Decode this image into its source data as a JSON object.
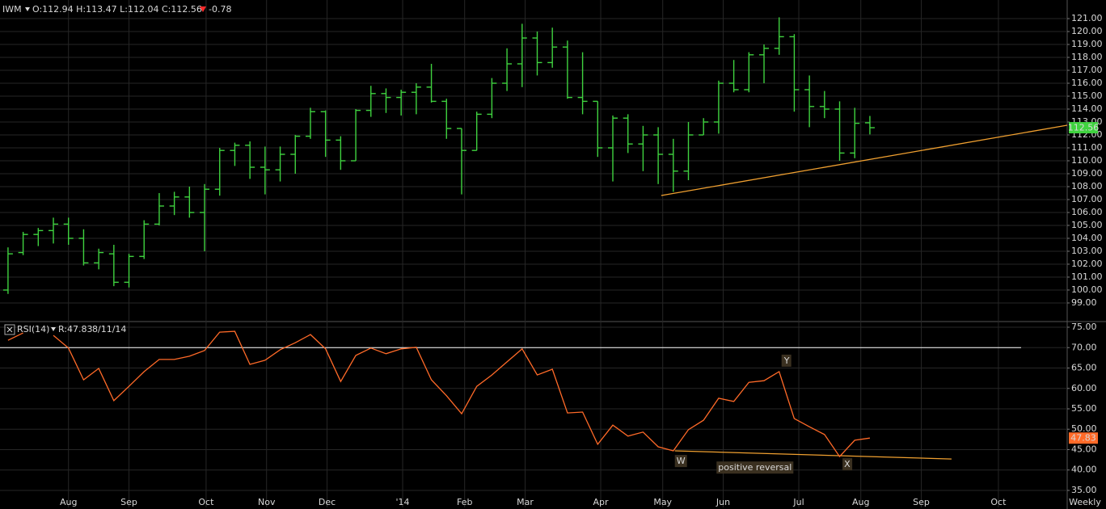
{
  "chart_data": [
    {
      "type": "ohlc",
      "title": "IWM",
      "header": "O:112.94 H:113.47 L:112.04 C:112.56",
      "change": "-0.78",
      "color": "#3fd23f",
      "header_color": "#3fd23f",
      "change_color": "#ff2a2a",
      "open": [
        100.0,
        102.9,
        104.3,
        104.6,
        105.1,
        104.0,
        102.1,
        102.8,
        100.6,
        102.6,
        105.1,
        106.5,
        107.2,
        106.0,
        107.8,
        110.8,
        111.2,
        109.5,
        109.3,
        110.5,
        111.9,
        113.8,
        111.6,
        110.0,
        113.9,
        115.2,
        114.9,
        115.3,
        115.7,
        114.6,
        112.5,
        110.8,
        113.6,
        116.0,
        117.5,
        119.5,
        117.6,
        118.8,
        114.9,
        114.6,
        111.0,
        113.3,
        111.3,
        112.0,
        110.5,
        109.2,
        112.0,
        113.0,
        116.0,
        115.5,
        118.2,
        118.7,
        119.6,
        115.5,
        114.2,
        114.0,
        110.6,
        112.94
      ],
      "high": [
        103.3,
        104.5,
        104.8,
        105.6,
        105.6,
        104.7,
        103.2,
        103.5,
        102.8,
        105.4,
        107.5,
        107.6,
        108.0,
        108.2,
        111.0,
        111.4,
        111.5,
        111.1,
        111.1,
        112.0,
        114.1,
        113.9,
        111.9,
        114.0,
        115.8,
        115.6,
        115.5,
        116.0,
        117.5,
        114.8,
        112.5,
        113.8,
        116.4,
        118.7,
        120.6,
        120.0,
        120.3,
        119.3,
        118.4,
        114.6,
        113.5,
        113.6,
        112.7,
        112.6,
        111.7,
        113.0,
        113.3,
        116.2,
        117.8,
        118.4,
        119.0,
        121.1,
        119.8,
        116.6,
        115.4,
        114.6,
        114.1,
        113.47
      ],
      "low": [
        99.7,
        102.7,
        103.4,
        103.6,
        103.5,
        101.9,
        101.6,
        100.3,
        100.2,
        102.4,
        105.0,
        105.8,
        105.6,
        103.0,
        107.3,
        109.6,
        108.6,
        107.4,
        108.4,
        109.0,
        111.7,
        110.3,
        109.3,
        110.0,
        113.4,
        113.7,
        113.5,
        113.6,
        114.5,
        111.7,
        107.4,
        110.8,
        113.3,
        115.4,
        115.7,
        116.6,
        117.2,
        114.8,
        113.6,
        110.3,
        108.4,
        110.6,
        109.2,
        108.2,
        107.6,
        108.5,
        112.0,
        112.1,
        115.3,
        115.3,
        116.0,
        118.2,
        113.8,
        112.6,
        113.3,
        110.0,
        110.2,
        112.04
      ],
      "close": [
        102.8,
        104.3,
        104.6,
        105.1,
        104.0,
        102.1,
        102.9,
        100.6,
        102.6,
        105.1,
        106.5,
        107.2,
        106.0,
        107.8,
        110.8,
        111.2,
        109.5,
        109.3,
        110.5,
        111.9,
        113.8,
        111.6,
        110.0,
        113.9,
        115.2,
        114.9,
        115.3,
        115.7,
        114.6,
        112.5,
        110.8,
        113.6,
        116.0,
        117.5,
        119.5,
        117.6,
        118.8,
        114.9,
        114.6,
        111.0,
        113.3,
        111.3,
        112.0,
        110.5,
        109.2,
        112.0,
        113.0,
        116.0,
        115.5,
        118.2,
        118.7,
        119.6,
        115.5,
        114.2,
        114.0,
        110.6,
        112.9,
        112.56
      ],
      "last_value_label": "112.56",
      "trendlines": [
        {
          "x": [
            43.2,
            70.05
          ],
          "y": [
            107.31,
            112.75
          ],
          "color": "#f0a030"
        }
      ],
      "xlim": [
        -0.53,
        70.05
      ],
      "ylim": [
        97.56,
        122.44
      ],
      "yticks": [
        {
          "value": 99,
          "label": "99.00"
        },
        {
          "value": 100,
          "label": "100.00"
        },
        {
          "value": 101,
          "label": "101.00"
        },
        {
          "value": 102,
          "label": "102.00"
        },
        {
          "value": 103,
          "label": "103.00"
        },
        {
          "value": 104,
          "label": "104.00"
        },
        {
          "value": 105,
          "label": "105.00"
        },
        {
          "value": 106,
          "label": "106.00"
        },
        {
          "value": 107,
          "label": "107.00"
        },
        {
          "value": 108,
          "label": "108.00"
        },
        {
          "value": 109,
          "label": "109.00"
        },
        {
          "value": 110,
          "label": "110.00"
        },
        {
          "value": 111,
          "label": "111.00"
        },
        {
          "value": 112,
          "label": "112.00"
        },
        {
          "value": 113,
          "label": "113.00"
        },
        {
          "value": 114,
          "label": "114.00"
        },
        {
          "value": 115,
          "label": "115.00"
        },
        {
          "value": 116,
          "label": "116.00"
        },
        {
          "value": 117,
          "label": "117.00"
        },
        {
          "value": 118,
          "label": "118.00"
        },
        {
          "value": 119,
          "label": "119.00"
        },
        {
          "value": 120,
          "label": "120.00"
        },
        {
          "value": 121,
          "label": "121.00"
        }
      ],
      "grid": true
    },
    {
      "type": "line",
      "title": "RSI(14)",
      "header": "R:47.83",
      "date": "8/11/14",
      "color": "#ff6a28",
      "values": [
        71.8,
        73.6,
        null,
        73.0,
        69.9,
        62.1,
        64.9,
        57.0,
        60.5,
        64.1,
        67.1,
        67.1,
        67.9,
        69.3,
        73.8,
        74.0,
        65.9,
        66.9,
        69.5,
        71.2,
        73.2,
        69.7,
        61.7,
        68.1,
        69.9,
        68.5,
        69.7,
        70.1,
        62.1,
        58.2,
        53.8,
        60.5,
        63.3,
        66.5,
        69.7,
        63.3,
        64.7,
        54.0,
        54.2,
        46.3,
        51.0,
        48.3,
        49.3,
        45.7,
        44.7,
        49.9,
        52.2,
        57.6,
        56.8,
        61.5,
        61.9,
        64.1,
        52.6,
        50.6,
        48.7,
        43.3,
        47.3,
        47.83
      ],
      "last_value_label": "47.83",
      "reference_line": {
        "value": 70,
        "x": [
          -0.53,
          67
        ],
        "color": "#ffffff"
      },
      "trendlines": [
        {
          "x": [
            44.1,
            62.4
          ],
          "y": [
            44.7,
            42.7
          ],
          "color": "#f0a030"
        }
      ],
      "annotations": [
        {
          "text": "W",
          "x": 44.5,
          "y": 42.1
        },
        {
          "text": "Y",
          "x": 51.5,
          "y": 66.7
        },
        {
          "text": "X",
          "x": 55.5,
          "y": 41.3
        },
        {
          "text": "positive reversal",
          "x": 49.4,
          "y": 40.5
        }
      ],
      "xlim": [
        -0.53,
        70.05
      ],
      "ylim": [
        30.84,
        76.19
      ],
      "yticks": [
        {
          "value": 35,
          "label": "35.00"
        },
        {
          "value": 40,
          "label": "40.00"
        },
        {
          "value": 45,
          "label": "45.00"
        },
        {
          "value": 50,
          "label": "50.00"
        },
        {
          "value": 55,
          "label": "55.00"
        },
        {
          "value": 60,
          "label": "60.00"
        },
        {
          "value": 65,
          "label": "65.00"
        },
        {
          "value": 70,
          "label": "70.00"
        },
        {
          "value": 75,
          "label": "75.00"
        }
      ],
      "xticks": [
        {
          "value": 4.0,
          "label": "Aug"
        },
        {
          "value": 8.0,
          "label": "Sep"
        },
        {
          "value": 13.1,
          "label": "Oct"
        },
        {
          "value": 17.1,
          "label": "Nov"
        },
        {
          "value": 21.1,
          "label": "Dec"
        },
        {
          "value": 26.1,
          "label": "'14"
        },
        {
          "value": 30.2,
          "label": "Feb"
        },
        {
          "value": 34.2,
          "label": "Mar"
        },
        {
          "value": 39.2,
          "label": "Apr"
        },
        {
          "value": 43.3,
          "label": "May"
        },
        {
          "value": 47.3,
          "label": "Jun"
        },
        {
          "value": 52.3,
          "label": "Jul"
        },
        {
          "value": 56.4,
          "label": "Aug"
        },
        {
          "value": 60.4,
          "label": "Sep"
        },
        {
          "value": 65.5,
          "label": "Oct"
        }
      ],
      "period": "Weekly",
      "grid": true
    }
  ]
}
